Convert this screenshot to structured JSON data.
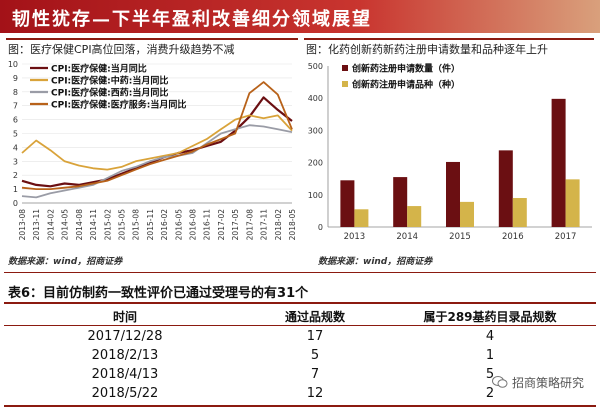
{
  "banner": {
    "title": "韧性犹存—下半年盈利改善细分领域展望"
  },
  "left_chart": {
    "caption": "图：医疗保健CPI高位回落，消费升级趋势不减",
    "source": "数据来源：wind，招商证券"
  },
  "right_chart": {
    "caption": "图：化药创新药新药注册申请数量和品种逐年上升",
    "source": "数据来源：wind，招商证券"
  },
  "table": {
    "title": "表6：目前仿制药一致性评价已通过受理号的有31个",
    "headers": [
      "时间",
      "通过品规数",
      "属于289基药目录品规数"
    ],
    "rows": [
      [
        "2017/12/28",
        "17",
        "4"
      ],
      [
        "2018/2/13",
        "5",
        "1"
      ],
      [
        "2018/4/13",
        "7",
        "5"
      ],
      [
        "2018/5/22",
        "12",
        "2"
      ]
    ]
  },
  "watermark": {
    "text": "招商策略研究"
  },
  "colors": {
    "banner": "#b3231e",
    "rule": "#8b1a10",
    "s1": "#6b0f12",
    "s2": "#d9a33a",
    "s3": "#9a9ca6",
    "s4": "#b8621a",
    "bar_apps": "#6b0f12",
    "bar_varieties": "#d4b44a"
  },
  "chart_data": [
    {
      "type": "line",
      "x": [
        "2013-08",
        "2013-11",
        "2014-02",
        "2014-05",
        "2014-08",
        "2014-11",
        "2015-02",
        "2015-05",
        "2015-08",
        "2015-11",
        "2016-02",
        "2016-05",
        "2016-08",
        "2016-11",
        "2017-02",
        "2017-05",
        "2017-08",
        "2017-11",
        "2018-02",
        "2018-05"
      ],
      "x_ticks": [
        "2013-08",
        "2013-11",
        "2014-02",
        "2014-05",
        "2014-08",
        "2014-11",
        "2015-02",
        "2015-05",
        "2015-08",
        "2015-11",
        "2016-02",
        "2016-05",
        "2016-08",
        "2016-11",
        "2017-02",
        "2017-05",
        "2017-08",
        "2017-11",
        "2018-02",
        "2018-05"
      ],
      "ylim": [
        0,
        10
      ],
      "y_ticks": [
        0,
        1,
        2,
        3,
        4,
        5,
        6,
        7,
        8,
        9,
        10
      ],
      "legend_position": "top-left",
      "series": [
        {
          "name": "CPI:医疗保健:当月同比",
          "color": "#6b0f12",
          "values": [
            1.6,
            1.3,
            1.2,
            1.4,
            1.3,
            1.5,
            1.7,
            2.1,
            2.5,
            2.9,
            3.3,
            3.6,
            3.8,
            4.1,
            4.4,
            5.2,
            6.2,
            7.6,
            6.7,
            5.9
          ]
        },
        {
          "name": "CPI:医疗保健:中药:当月同比",
          "color": "#d9a33a",
          "values": [
            3.6,
            4.5,
            3.8,
            3.0,
            2.7,
            2.5,
            2.4,
            2.6,
            3.0,
            3.2,
            3.4,
            3.6,
            4.1,
            4.6,
            5.3,
            6.0,
            6.3,
            6.1,
            6.3,
            5.2
          ]
        },
        {
          "name": "CPI:医疗保健:西药:当月同比",
          "color": "#9a9ca6",
          "values": [
            0.5,
            0.4,
            0.7,
            0.9,
            1.1,
            1.3,
            1.8,
            2.3,
            2.6,
            3.0,
            3.3,
            3.4,
            3.6,
            4.3,
            5.0,
            5.3,
            5.6,
            5.5,
            5.3,
            5.1
          ]
        },
        {
          "name": "CPI:医疗保健:医疗服务:当月同比",
          "color": "#b8621a",
          "values": [
            1.1,
            1.0,
            1.0,
            1.1,
            1.2,
            1.4,
            1.6,
            2.0,
            2.4,
            2.8,
            3.1,
            3.4,
            3.7,
            4.2,
            4.6,
            5.0,
            7.9,
            8.7,
            7.8,
            5.3
          ]
        }
      ]
    },
    {
      "type": "bar",
      "categories": [
        "2013",
        "2014",
        "2015",
        "2016",
        "2017"
      ],
      "ylim": [
        0,
        500
      ],
      "y_ticks": [
        0,
        100,
        200,
        300,
        400,
        500
      ],
      "legend_position": "top-left",
      "series": [
        {
          "name": "创新药注册申请数量（件）",
          "color": "#6b0f12",
          "values": [
            145,
            155,
            202,
            238,
            398
          ]
        },
        {
          "name": "创新药注册申请品种（种）",
          "color": "#d4b44a",
          "values": [
            55,
            65,
            78,
            90,
            148
          ]
        }
      ]
    }
  ]
}
